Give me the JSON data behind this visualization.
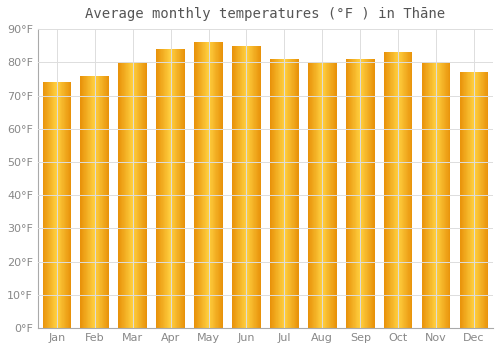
{
  "title": "Average monthly temperatures (°F ) in Thāne",
  "months": [
    "Jan",
    "Feb",
    "Mar",
    "Apr",
    "May",
    "Jun",
    "Jul",
    "Aug",
    "Sep",
    "Oct",
    "Nov",
    "Dec"
  ],
  "values": [
    74,
    76,
    80,
    84,
    86,
    85,
    81,
    80,
    81,
    83,
    80,
    77
  ],
  "bar_color_left": "#E8920A",
  "bar_color_center": "#FFD040",
  "bar_color_right": "#E8920A",
  "ylim": [
    0,
    90
  ],
  "yticks": [
    0,
    10,
    20,
    30,
    40,
    50,
    60,
    70,
    80,
    90
  ],
  "ytick_labels": [
    "0°F",
    "10°F",
    "20°F",
    "30°F",
    "40°F",
    "50°F",
    "60°F",
    "70°F",
    "80°F",
    "90°F"
  ],
  "background_color": "#FFFFFF",
  "grid_color": "#DDDDDD",
  "title_fontsize": 10,
  "tick_fontsize": 8,
  "bar_width": 0.75,
  "n_gradient_steps": 50
}
